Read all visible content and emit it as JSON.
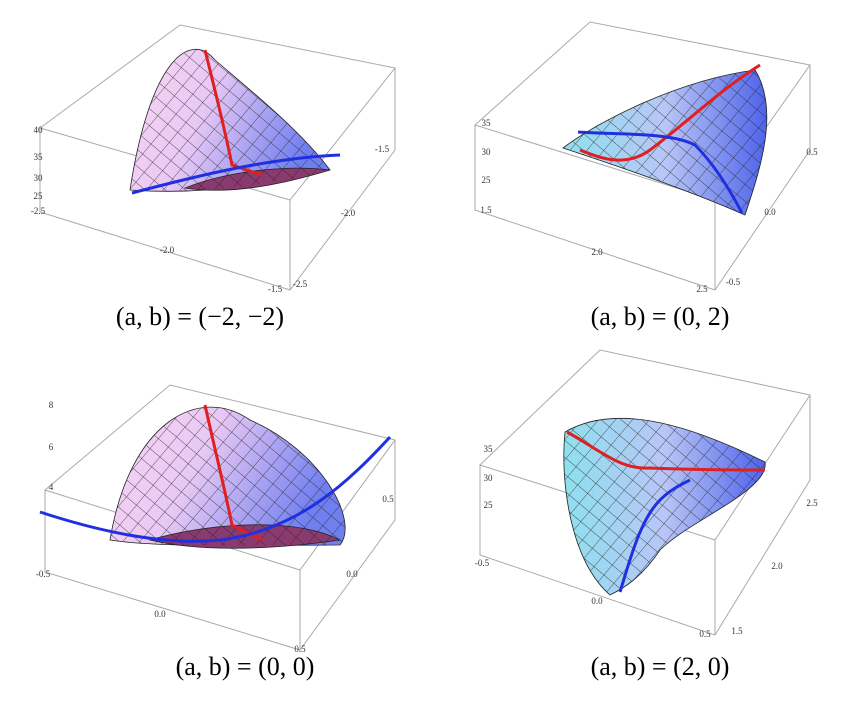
{
  "panels": [
    {
      "caption": "(a, b) = (−2, −2)",
      "ticks": [
        "40",
        "35",
        "30",
        "25",
        "-2.5",
        "-2.0",
        "-1.5",
        "-2.5",
        "-1.5",
        "-2.0"
      ]
    },
    {
      "caption": "(a, b) = (0, 2)",
      "ticks": [
        "35",
        "30",
        "25",
        "1.5",
        "2.0",
        "2.5",
        "0.5",
        "0.0",
        "-0.5"
      ]
    },
    {
      "caption": "(a, b) = (0, 0)",
      "ticks": [
        "8",
        "6",
        "4",
        "-0.5",
        "0.0",
        "0.5",
        "0.0",
        "0.5"
      ]
    },
    {
      "caption": "(a, b) = (2, 0)",
      "ticks": [
        "35",
        "30",
        "25",
        "-0.5",
        "0.0",
        "2.5",
        "2.0",
        "1.5",
        "0.5"
      ]
    }
  ]
}
